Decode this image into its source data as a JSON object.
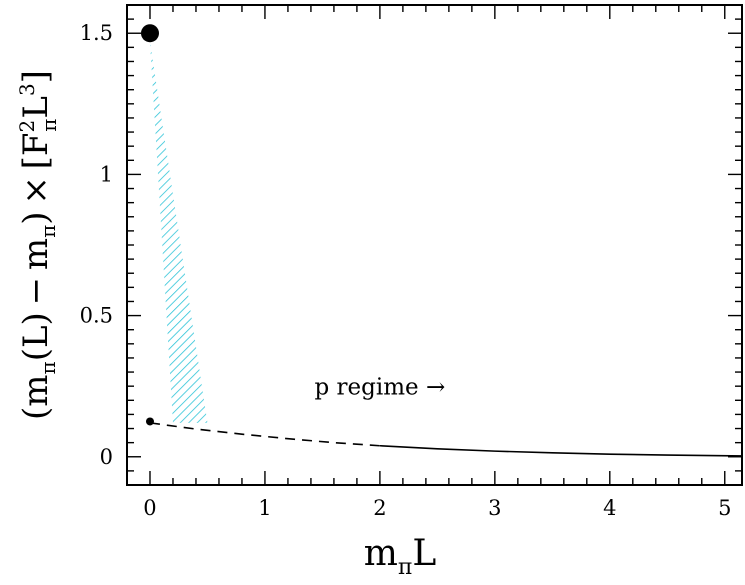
{
  "chart_data": {
    "type": "line",
    "xlabel": "m",
    "xlabel_sub": "π",
    "xlabel_tail": "L",
    "ylabel_parts": {
      "open": "(m",
      "sub1": "π",
      "mid": "(L) − m",
      "sub2": "π",
      "close": ") × [F",
      "sup1": "2",
      "sub3": "π",
      "tail": "L",
      "sup2": "3",
      "end": "]"
    },
    "xlim": [
      -0.2,
      5.15
    ],
    "ylim": [
      -0.1,
      1.6
    ],
    "xticks": [
      0,
      1,
      2,
      3,
      4,
      5
    ],
    "xtick_labels": [
      "0",
      "1",
      "2",
      "3",
      "4",
      "5"
    ],
    "yticks": [
      0,
      0.5,
      1,
      1.5
    ],
    "ytick_labels": [
      "0",
      "0.5",
      "1",
      "1.5"
    ],
    "grid": false,
    "series": [
      {
        "style": "dashed",
        "x": [
          0,
          0.4,
          0.8,
          1.2,
          1.6,
          2.0
        ],
        "y": [
          0.12,
          0.098,
          0.08,
          0.064,
          0.05,
          0.039
        ]
      },
      {
        "style": "solid",
        "x": [
          2.0,
          2.5,
          3.0,
          3.5,
          4.0,
          4.5,
          5.15
        ],
        "y": [
          0.039,
          0.028,
          0.02,
          0.014,
          0.009,
          0.006,
          0.003
        ]
      }
    ],
    "points": [
      {
        "x": 0,
        "y": 1.5,
        "size": "large"
      },
      {
        "x": 0,
        "y": 0.125,
        "size": "small"
      }
    ],
    "band": {
      "color": "#2ec4d8",
      "polygon": [
        [
          0,
          1.47
        ],
        [
          0.2,
          0.12
        ],
        [
          0.5,
          0.12
        ],
        [
          0,
          1.47
        ]
      ]
    },
    "annotation": {
      "text": "p regime →",
      "x": 2.0,
      "y": 0.22
    }
  }
}
